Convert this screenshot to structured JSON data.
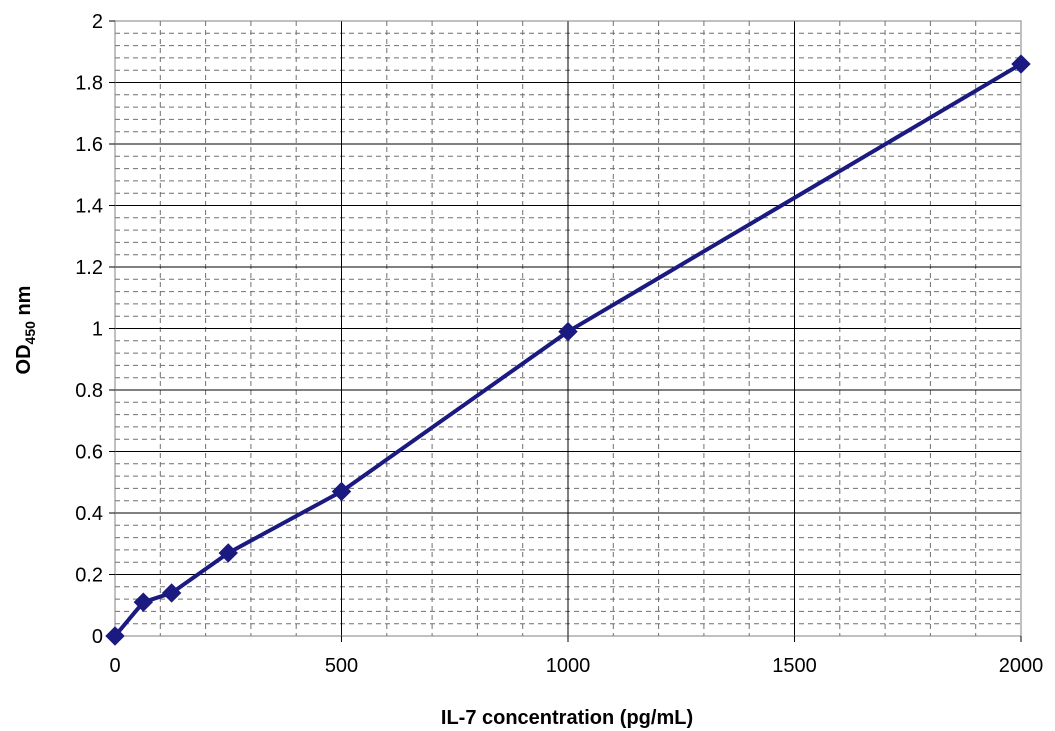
{
  "chart_data": {
    "type": "line",
    "title": "",
    "xlabel": "IL-7 concentration (pg/mL)",
    "ylabel": {
      "main": "OD",
      "subscript": "450",
      "unit": " nm"
    },
    "xlim": [
      0,
      2000
    ],
    "ylim": [
      0,
      2
    ],
    "x_ticks": [
      0,
      500,
      1000,
      1500,
      2000
    ],
    "y_ticks": [
      0,
      0.2,
      0.4,
      0.6,
      0.8,
      1,
      1.2,
      1.4,
      1.6,
      1.8,
      2
    ],
    "grid": true,
    "legend": "none",
    "series": [
      {
        "color": "#1a1a80",
        "marker": "diamond",
        "x": [
          0,
          62.5,
          125,
          250,
          500,
          1000,
          2000
        ],
        "y": [
          0.0,
          0.11,
          0.14,
          0.27,
          0.47,
          0.99,
          1.86
        ]
      }
    ]
  }
}
